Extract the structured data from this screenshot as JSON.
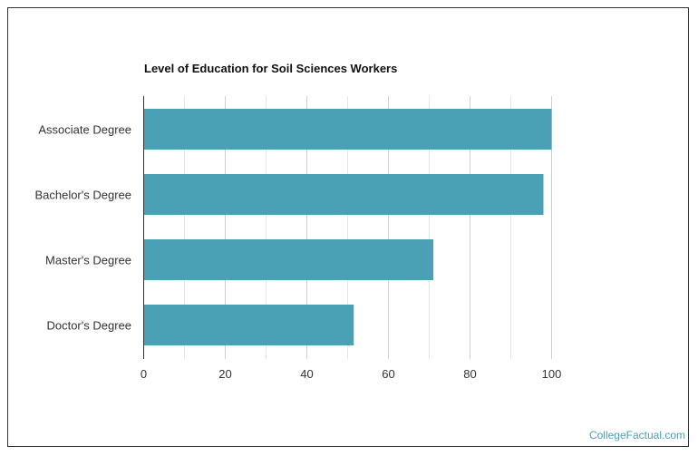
{
  "chart_data": {
    "type": "bar",
    "orientation": "horizontal",
    "title": "Level of Education for Soil Sciences Workers",
    "categories": [
      "Associate Degree",
      "Bachelor's Degree",
      "Master's Degree",
      "Doctor's Degree"
    ],
    "values": [
      100,
      98,
      71,
      51.5
    ],
    "xlabel": "",
    "ylabel": "",
    "xlim": [
      0,
      100
    ],
    "xticks": [
      0,
      20,
      40,
      60,
      80,
      100
    ],
    "grid": true,
    "bar_color": "#4aa0b5"
  },
  "watermark": "CollegeFactual.com"
}
